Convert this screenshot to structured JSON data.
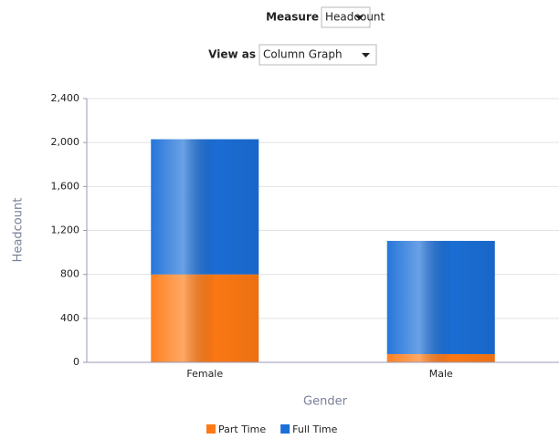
{
  "controls": [
    {
      "label": "Measure",
      "value": "Headcount"
    },
    {
      "label": "View as",
      "value": "Column Graph"
    }
  ],
  "chart_data": {
    "type": "stacked_bar",
    "x_label": "Gender",
    "y_label": "Headcount",
    "categories": [
      "Female",
      "Male"
    ],
    "series": [
      {
        "name": "Part Time",
        "color": "#ff7a14",
        "values": [
          800,
          75
        ]
      },
      {
        "name": "Full Time",
        "color": "#1b6fd8",
        "values": [
          1230,
          1030
        ]
      }
    ],
    "ylim": [
      0,
      2400
    ],
    "yticks": [
      0,
      400,
      800,
      {
        "value": 1200,
        "label": "1,200"
      },
      {
        "value": 1600,
        "label": "1,600"
      },
      {
        "value": 2000,
        "label": "2,000"
      },
      {
        "value": 2400,
        "label": "2,400"
      }
    ],
    "grid": true,
    "legend": "bottom"
  }
}
